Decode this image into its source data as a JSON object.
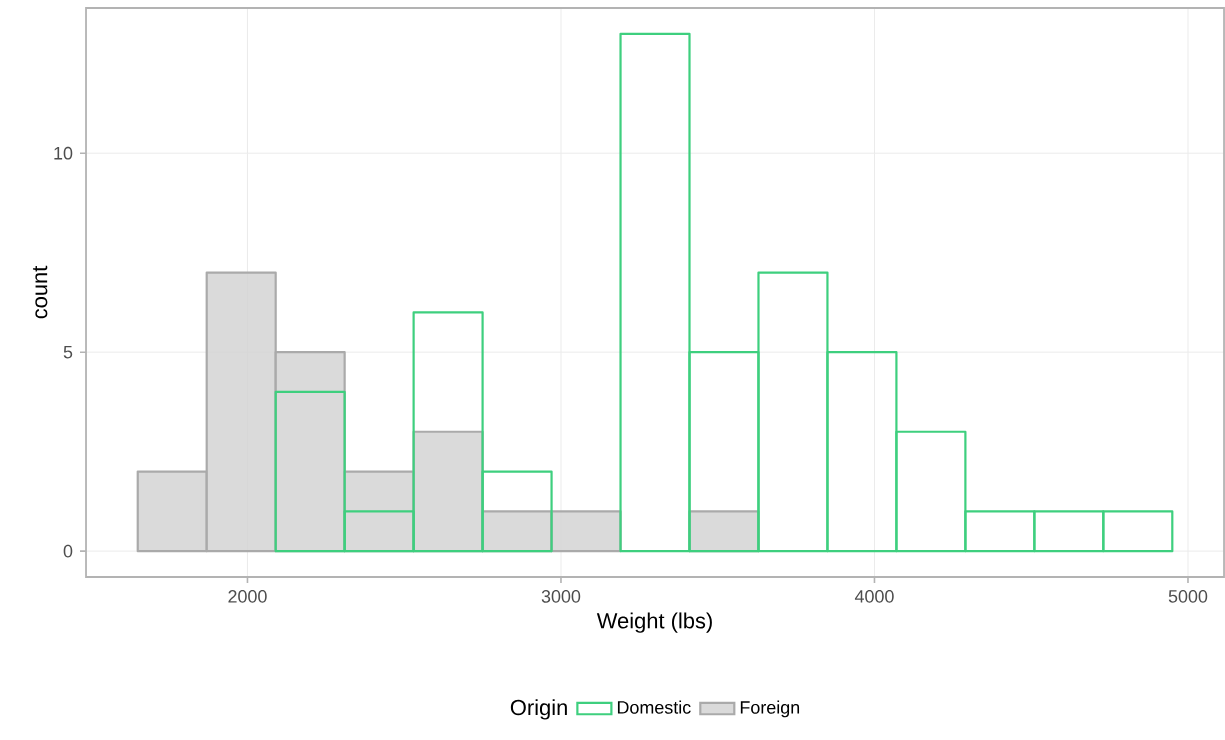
{
  "chart_data": {
    "type": "histogram",
    "xlabel": "Weight (lbs)",
    "ylabel": "count",
    "legend_title": "Origin",
    "bins": [
      1650,
      1870,
      2090,
      2310,
      2530,
      2750,
      2970,
      3190,
      3410,
      3630,
      3850,
      4070,
      4290,
      4510,
      4730,
      4950
    ],
    "series": [
      {
        "name": "Domestic",
        "color": "#3ecf7e",
        "values": [
          null,
          null,
          4,
          1,
          6,
          2,
          null,
          13,
          5,
          7,
          5,
          3,
          1,
          1,
          1
        ]
      },
      {
        "name": "Foreign",
        "color": "#d4d4d4",
        "values": [
          2,
          7,
          5,
          2,
          3,
          1,
          1,
          0,
          1,
          0,
          0,
          0,
          0,
          0,
          0
        ]
      }
    ],
    "xlim": [
      1485,
      5115
    ],
    "ylim": [
      -0.65,
      13.65
    ],
    "xticks": [
      2000,
      3000,
      4000,
      5000
    ],
    "yticks": [
      0,
      5,
      10
    ],
    "grid": true,
    "legend": "bottom"
  }
}
